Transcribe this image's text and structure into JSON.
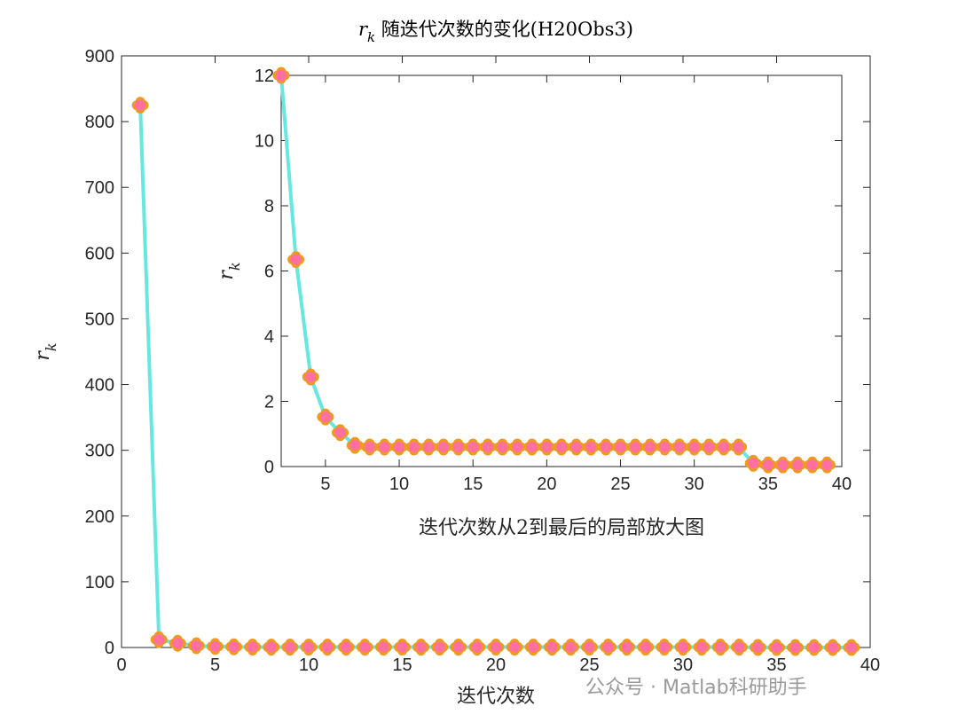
{
  "chart_data": [
    {
      "type": "line",
      "title": "r_k 随迭代次数的变化(H20Obs3)",
      "title_symbol": "r",
      "title_symbol_sub": "k",
      "title_text": "随迭代次数的变化(H20Obs3)",
      "xlabel": "迭代次数",
      "ylabel": "r_k",
      "ylabel_symbol": "r",
      "ylabel_sub": "k",
      "xlim": [
        0,
        40
      ],
      "ylim": [
        0,
        900
      ],
      "xticks": [
        0,
        5,
        10,
        15,
        20,
        25,
        30,
        35,
        40
      ],
      "yticks": [
        0,
        100,
        200,
        300,
        400,
        500,
        600,
        700,
        800,
        900
      ],
      "grid": false,
      "x": [
        1,
        2,
        3,
        4,
        5,
        6,
        7,
        8,
        9,
        10,
        11,
        12,
        13,
        14,
        15,
        16,
        17,
        18,
        19,
        20,
        21,
        22,
        23,
        24,
        25,
        26,
        27,
        28,
        29,
        30,
        31,
        32,
        33,
        34,
        35,
        36,
        37,
        38,
        39
      ],
      "y": [
        825,
        12,
        6.35,
        2.75,
        1.52,
        1.04,
        0.65,
        0.6,
        0.6,
        0.6,
        0.6,
        0.6,
        0.6,
        0.6,
        0.6,
        0.6,
        0.6,
        0.6,
        0.6,
        0.6,
        0.6,
        0.6,
        0.6,
        0.6,
        0.6,
        0.6,
        0.6,
        0.6,
        0.6,
        0.6,
        0.6,
        0.6,
        0.6,
        0.1,
        0.05,
        0.05,
        0.05,
        0.05,
        0.05
      ]
    },
    {
      "type": "line",
      "title": "",
      "xlabel": "迭代次数从2到最后的局部放大图",
      "ylabel": "r_k",
      "ylabel_symbol": "r",
      "ylabel_sub": "k",
      "xlim": [
        2,
        40
      ],
      "ylim": [
        0,
        12
      ],
      "xticks": [
        5,
        10,
        15,
        20,
        25,
        30,
        35,
        40
      ],
      "yticks": [
        0,
        2,
        4,
        6,
        8,
        10,
        12
      ],
      "grid": false,
      "x": [
        2,
        3,
        4,
        5,
        6,
        7,
        8,
        9,
        10,
        11,
        12,
        13,
        14,
        15,
        16,
        17,
        18,
        19,
        20,
        21,
        22,
        23,
        24,
        25,
        26,
        27,
        28,
        29,
        30,
        31,
        32,
        33,
        34,
        35,
        36,
        37,
        38,
        39
      ],
      "y": [
        12,
        6.35,
        2.75,
        1.52,
        1.04,
        0.65,
        0.6,
        0.6,
        0.6,
        0.6,
        0.6,
        0.6,
        0.6,
        0.6,
        0.6,
        0.6,
        0.6,
        0.6,
        0.6,
        0.6,
        0.6,
        0.6,
        0.6,
        0.6,
        0.6,
        0.6,
        0.6,
        0.6,
        0.6,
        0.6,
        0.6,
        0.6,
        0.1,
        0.05,
        0.05,
        0.05,
        0.05,
        0.05
      ]
    }
  ],
  "colors": {
    "line": "#66e8e0",
    "marker_edge": "#ee9a1e",
    "marker_fill": "#ff6fa0",
    "axis": "#262626"
  },
  "watermark": "公众号 · Matlab科研助手"
}
